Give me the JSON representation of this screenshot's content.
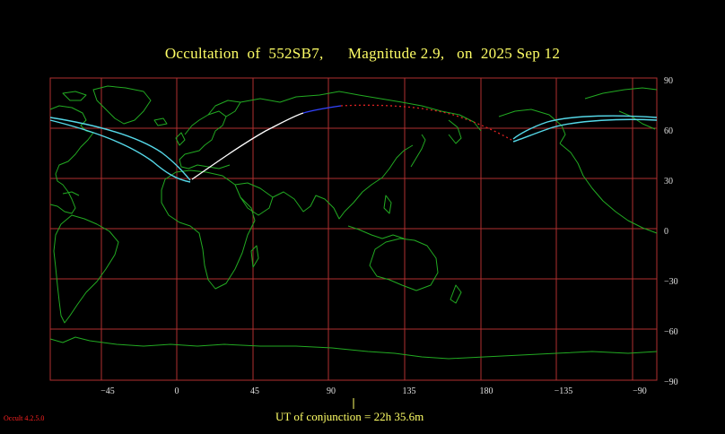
{
  "title": {
    "object": "Occultation  of  552SB7,",
    "magnitude": "Magnitude 2.9,",
    "date": "on  2025 Sep 12"
  },
  "ut_label": "UT of conjunction = 22h 35.6m",
  "version": "Occult 4.2.5.0",
  "axes": {
    "longitude_ticks": [
      "−45",
      "0",
      "45",
      "90",
      "135",
      "180",
      "−135",
      "−90"
    ],
    "latitude_ticks": [
      "90",
      "60",
      "30",
      "0",
      "−30",
      "−60",
      "−90"
    ]
  },
  "colors": {
    "background": "#000000",
    "title": "#ffff66",
    "grid": "#b03030",
    "coast": "#22aa22",
    "path_limits": "#55d8e8",
    "central_line_day": "#ffffff",
    "central_line_twilight": "#3344ff",
    "central_line_night": "#dd2222",
    "version": "#ff2222"
  }
}
